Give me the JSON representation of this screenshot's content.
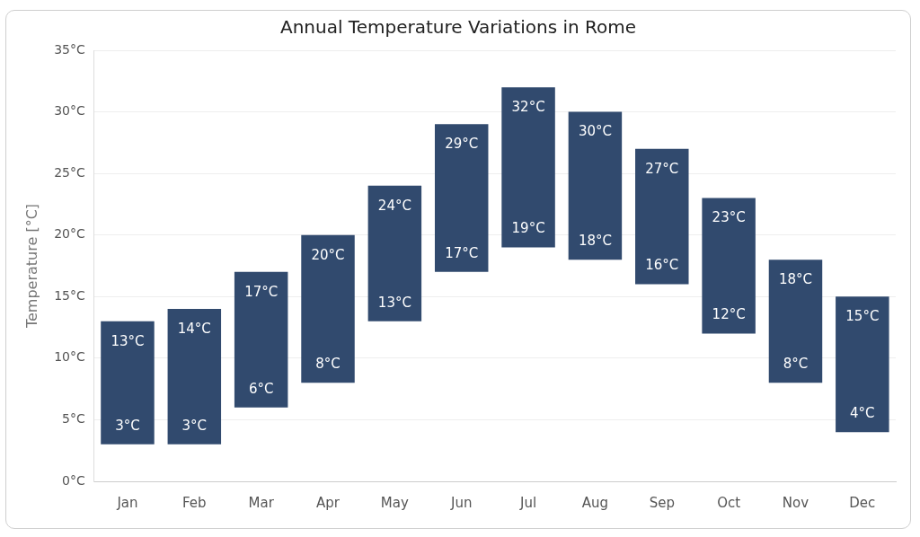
{
  "chart_data": {
    "type": "floating_bar",
    "title": "Annual Temperature Variations in Rome",
    "y_label": "Temperature [°C]",
    "categories": [
      "Jan",
      "Feb",
      "Mar",
      "Apr",
      "May",
      "Jun",
      "Jul",
      "Aug",
      "Sep",
      "Oct",
      "Nov",
      "Dec"
    ],
    "values": [
      [
        3,
        13
      ],
      [
        3,
        14
      ],
      [
        6,
        17
      ],
      [
        8,
        20
      ],
      [
        13,
        24
      ],
      [
        17,
        29
      ],
      [
        19,
        32
      ],
      [
        18,
        30
      ],
      [
        16,
        27
      ],
      [
        12,
        23
      ],
      [
        8,
        18
      ],
      [
        4,
        15
      ]
    ],
    "value_labels": [
      [
        "3°C",
        "13°C"
      ],
      [
        "3°C",
        "14°C"
      ],
      [
        "6°C",
        "17°C"
      ],
      [
        "8°C",
        "20°C"
      ],
      [
        "13°C",
        "24°C"
      ],
      [
        "17°C",
        "29°C"
      ],
      [
        "19°C",
        "32°C"
      ],
      [
        "18°C",
        "30°C"
      ],
      [
        "16°C",
        "27°C"
      ],
      [
        "12°C",
        "23°C"
      ],
      [
        "8°C",
        "18°C"
      ],
      [
        "4°C",
        "15°C"
      ]
    ],
    "color": "#314a6e",
    "ylim": [
      0,
      35
    ],
    "yticks": [
      {
        "value": 0,
        "label": "0°C"
      },
      {
        "value": 5,
        "label": "5°C"
      },
      {
        "value": 10,
        "label": "10°C"
      },
      {
        "value": 15,
        "label": "15°C"
      },
      {
        "value": 20,
        "label": "20°C"
      },
      {
        "value": 25,
        "label": "25°C"
      },
      {
        "value": 30,
        "label": "30°C"
      },
      {
        "value": 35,
        "label": "35°C"
      }
    ],
    "grid": true,
    "data_labels": true
  }
}
